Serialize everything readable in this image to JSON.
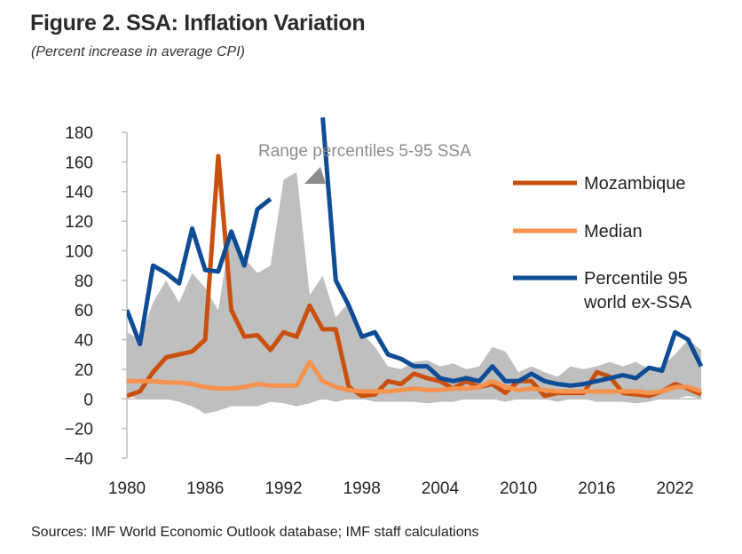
{
  "title": "Figure 2. SSA: Inflation Variation",
  "subtitle": "(Percent increase in average CPI)",
  "source": "Sources: IMF World Economic Outlook database; IMF staff calculations",
  "chart_data": {
    "type": "line",
    "title": "Figure 2. SSA: Inflation Variation",
    "ylabel": "Percent increase in average CPI",
    "xlabel": "",
    "ylim": [
      -40,
      180
    ],
    "xlim": [
      1980,
      2024
    ],
    "y_ticks": [
      180,
      160,
      140,
      120,
      100,
      80,
      60,
      40,
      20,
      0,
      -20,
      -40
    ],
    "y_tick_labels": [
      "180",
      "160",
      "140",
      "120",
      "100",
      "80",
      "60",
      "40",
      "20",
      "0",
      "−20",
      "−40"
    ],
    "x_ticks": [
      1980,
      1986,
      1992,
      1998,
      2004,
      2010,
      2016,
      2022
    ],
    "x_tick_labels": [
      "1980",
      "1986",
      "1992",
      "1998",
      "2004",
      "2010",
      "2016",
      "2022"
    ],
    "annotation": "Range percentiles 5-95 SSA",
    "colors": {
      "band": "#bfbfbf",
      "mozambique": "#c9500e",
      "median": "#f5924e",
      "p95world": "#0f4c96",
      "axis": "#bfbfbf",
      "arrow": "#8c8c8c"
    },
    "x": [
      1980,
      1981,
      1982,
      1983,
      1984,
      1985,
      1986,
      1987,
      1988,
      1989,
      1990,
      1991,
      1992,
      1993,
      1994,
      1995,
      1996,
      1997,
      1998,
      1999,
      2000,
      2001,
      2002,
      2003,
      2004,
      2005,
      2006,
      2007,
      2008,
      2009,
      2010,
      2011,
      2012,
      2013,
      2014,
      2015,
      2016,
      2017,
      2018,
      2019,
      2020,
      2021,
      2022,
      2023,
      2024
    ],
    "band": {
      "name": "Range percentiles 5-95 SSA",
      "upper": [
        45,
        40,
        65,
        80,
        65,
        85,
        75,
        60,
        115,
        95,
        85,
        90,
        148,
        153,
        70,
        83,
        55,
        65,
        45,
        35,
        22,
        20,
        25,
        26,
        22,
        24,
        20,
        22,
        35,
        32,
        18,
        22,
        18,
        15,
        22,
        20,
        22,
        25,
        22,
        25,
        20,
        22,
        30,
        40,
        33
      ],
      "lower": [
        2,
        0,
        0,
        0,
        -2,
        -5,
        -10,
        -8,
        -5,
        -5,
        -5,
        -2,
        -3,
        -5,
        -3,
        0,
        -2,
        0,
        0,
        -2,
        -2,
        -2,
        -2,
        -3,
        -2,
        -2,
        0,
        0,
        0,
        -2,
        0,
        0,
        0,
        -2,
        0,
        0,
        -2,
        -2,
        -2,
        -3,
        -2,
        0,
        0,
        2,
        0
      ]
    },
    "series": [
      {
        "name": "Mozambique",
        "values": [
          2,
          5,
          18,
          28,
          30,
          32,
          40,
          164,
          60,
          42,
          43,
          33,
          45,
          42,
          63,
          47,
          47,
          8,
          2,
          3,
          12,
          10,
          17,
          14,
          12,
          7,
          12,
          8,
          10,
          4,
          12,
          12,
          2,
          4,
          4,
          4,
          18,
          15,
          4,
          3,
          2,
          5,
          10,
          7,
          3
        ]
      },
      {
        "name": "Median",
        "values": [
          12,
          12,
          12,
          11,
          11,
          10,
          8,
          7,
          7,
          8,
          10,
          9,
          9,
          9,
          25,
          12,
          8,
          6,
          5,
          5,
          5,
          6,
          7,
          6,
          6,
          7,
          7,
          8,
          12,
          8,
          6,
          7,
          6,
          5,
          5,
          5,
          5,
          5,
          5,
          5,
          4,
          5,
          8,
          8,
          5
        ]
      },
      {
        "name": "Percentile 95 world ex-SSA",
        "values": [
          60,
          37,
          90,
          85,
          78,
          115,
          87,
          86,
          113,
          90,
          128,
          135,
          null,
          null,
          null,
          190,
          80,
          63,
          42,
          45,
          30,
          27,
          22,
          22,
          14,
          12,
          14,
          12,
          22,
          12,
          12,
          17,
          12,
          10,
          9,
          10,
          12,
          14,
          16,
          14,
          21,
          19,
          45,
          40,
          22
        ]
      }
    ],
    "legend": [
      {
        "label": "Mozambique"
      },
      {
        "label": "Median"
      },
      {
        "label_line1": "Percentile 95",
        "label_line2": "world ex-SSA"
      }
    ],
    "legend_position": "right"
  }
}
